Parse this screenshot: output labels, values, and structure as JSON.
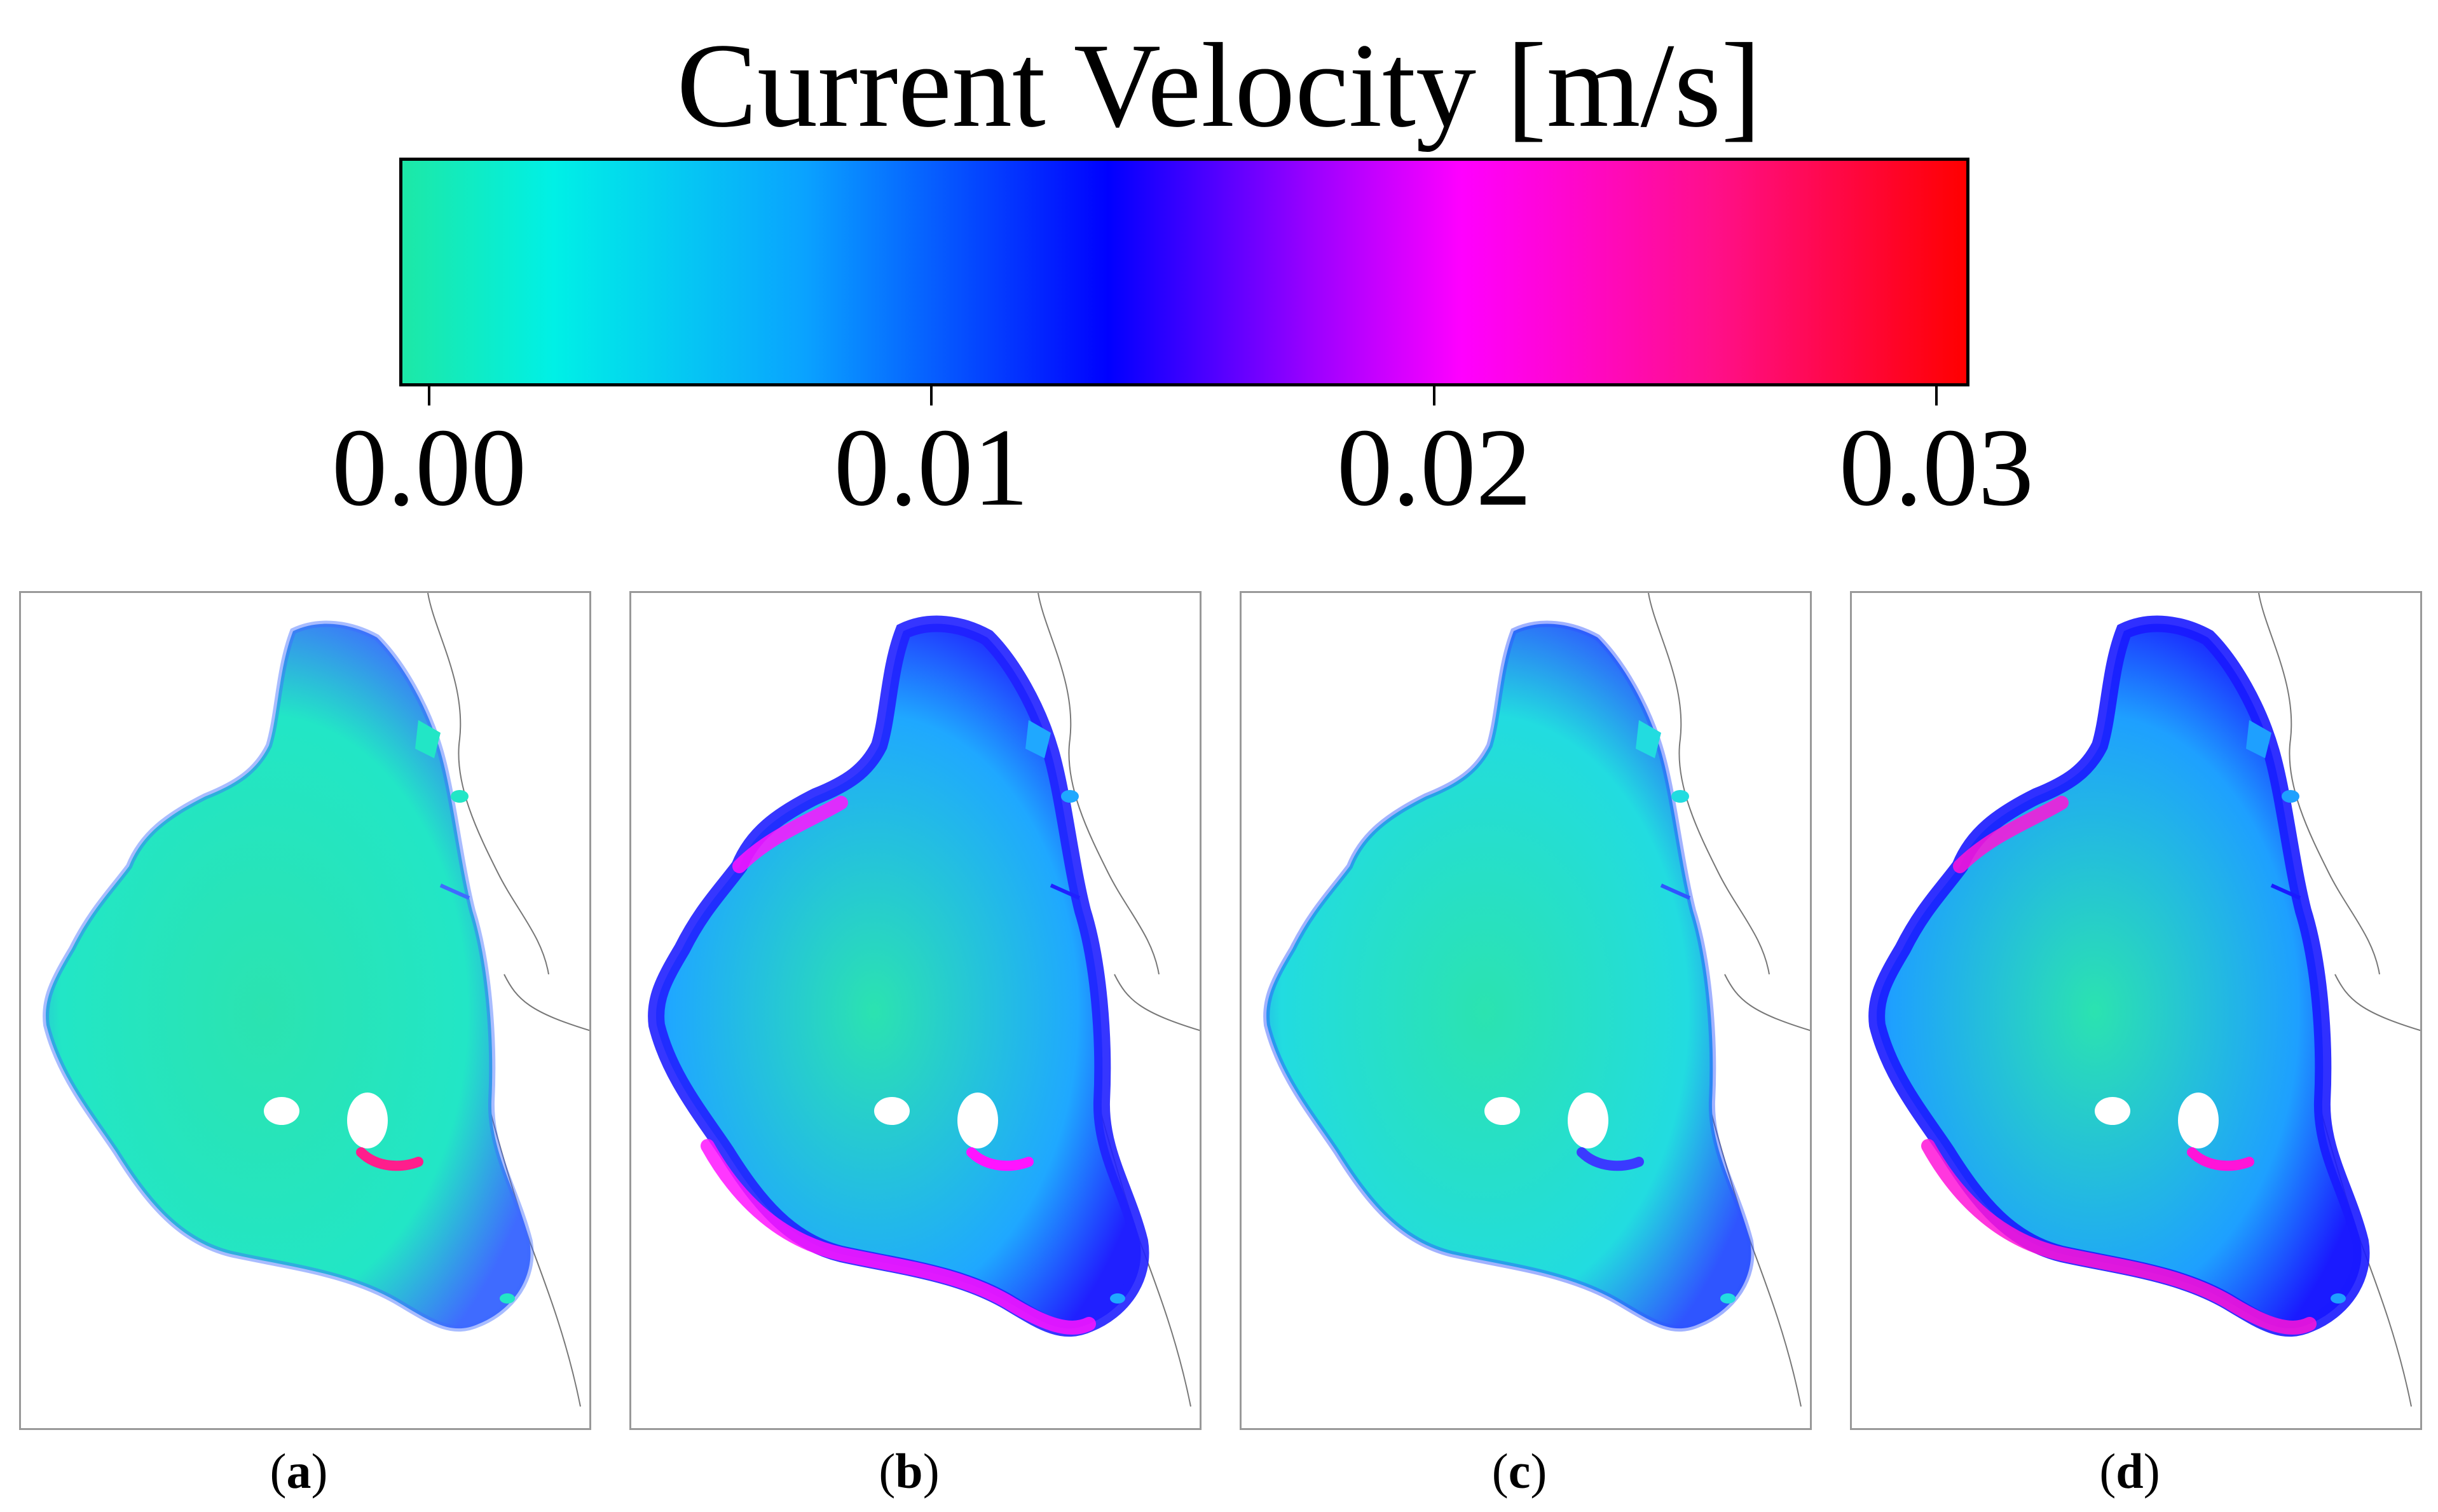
{
  "figure": {
    "title": "Current Velocity [m/s]"
  },
  "colorbar": {
    "ticks": [
      "0.00",
      "0.01",
      "0.02",
      "0.03"
    ],
    "tick_values": [
      0.0,
      0.01,
      0.02,
      0.03
    ],
    "range": [
      0.0,
      0.031
    ],
    "stops": [
      {
        "v": 0.0,
        "c": "#1de8a6"
      },
      {
        "v": 0.003,
        "c": "#00f0e6"
      },
      {
        "v": 0.008,
        "c": "#0aa2ff"
      },
      {
        "v": 0.014,
        "c": "#0000ff"
      },
      {
        "v": 0.018,
        "c": "#9a00ff"
      },
      {
        "v": 0.021,
        "c": "#ff00ff"
      },
      {
        "v": 0.026,
        "c": "#ff0f8a"
      },
      {
        "v": 0.031,
        "c": "#ff0000"
      }
    ]
  },
  "panels": [
    {
      "label": "a",
      "scenario_color": "#22e6c6",
      "edge_color": "#3f6bff",
      "hotspot_color": "#ff1e8c",
      "strong_edges": false
    },
    {
      "label": "b",
      "scenario_color": "#1fa8ff",
      "edge_color": "#2020ff",
      "hotspot_color": "#ff14ff",
      "strong_edges": true
    },
    {
      "label": "c",
      "scenario_color": "#22dce0",
      "edge_color": "#2f55ff",
      "hotspot_color": "#3a3aff",
      "strong_edges": false
    },
    {
      "label": "d",
      "scenario_color": "#1ea0ff",
      "edge_color": "#1a1aff",
      "hotspot_color": "#ff14d8",
      "strong_edges": true
    }
  ]
}
